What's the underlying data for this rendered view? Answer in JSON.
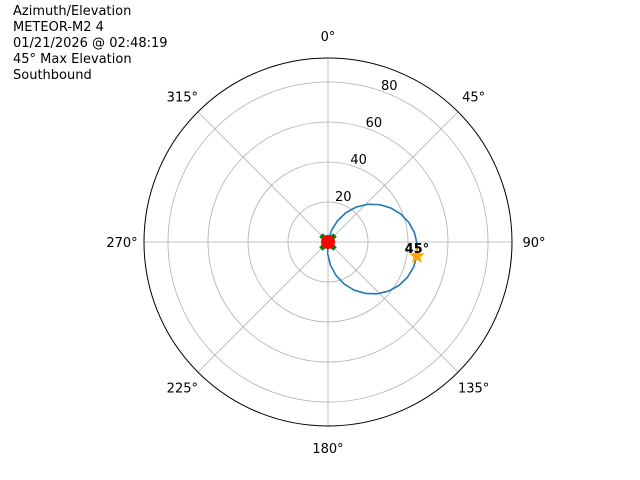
{
  "title_lines": [
    "Azimuth/Elevation",
    "METEOR-M2 4",
    "01/21/2026 @ 02:48:19",
    "45° Max Elevation",
    "Southbound"
  ],
  "chart_data": {
    "type": "polar-line",
    "theta_direction": "clockwise",
    "theta_zero": "north",
    "theta_ticks": [
      "0°",
      "45°",
      "90°",
      "135°",
      "180°",
      "225°",
      "270°",
      "315°"
    ],
    "r_ticks": [
      20,
      40,
      60,
      80
    ],
    "r_tick_labels": [
      "20",
      "40",
      "60",
      "80"
    ],
    "rlim": [
      0,
      92
    ],
    "grid": true,
    "series": [
      {
        "color": "#1f77b4",
        "azimuth": [
          9,
          16.5,
          24,
          31.5,
          39,
          46.5,
          54,
          61.5,
          69,
          76.5,
          84,
          91.5,
          99,
          106.5,
          114,
          121.5,
          129,
          136.5,
          144,
          151.5,
          159,
          166.5,
          174,
          181.5,
          189
        ],
        "elevation": [
          0,
          5.9,
          11.6,
          17.2,
          22.5,
          27.4,
          31.8,
          35.7,
          39.0,
          41.6,
          43.5,
          44.6,
          45,
          44.6,
          43.5,
          41.6,
          39.0,
          35.7,
          31.8,
          27.4,
          22.5,
          17.2,
          11.6,
          5.9,
          0
        ]
      }
    ],
    "markers": [
      {
        "kind": "start",
        "shape": "X",
        "color": "#008000",
        "azimuth": 9,
        "elevation": 0
      },
      {
        "kind": "end",
        "shape": "circle",
        "color": "#ff0000",
        "azimuth": 189,
        "elevation": 0
      },
      {
        "kind": "max",
        "shape": "star",
        "color": "#ffa500",
        "azimuth": 99,
        "elevation": 45,
        "label": "45°"
      }
    ]
  }
}
